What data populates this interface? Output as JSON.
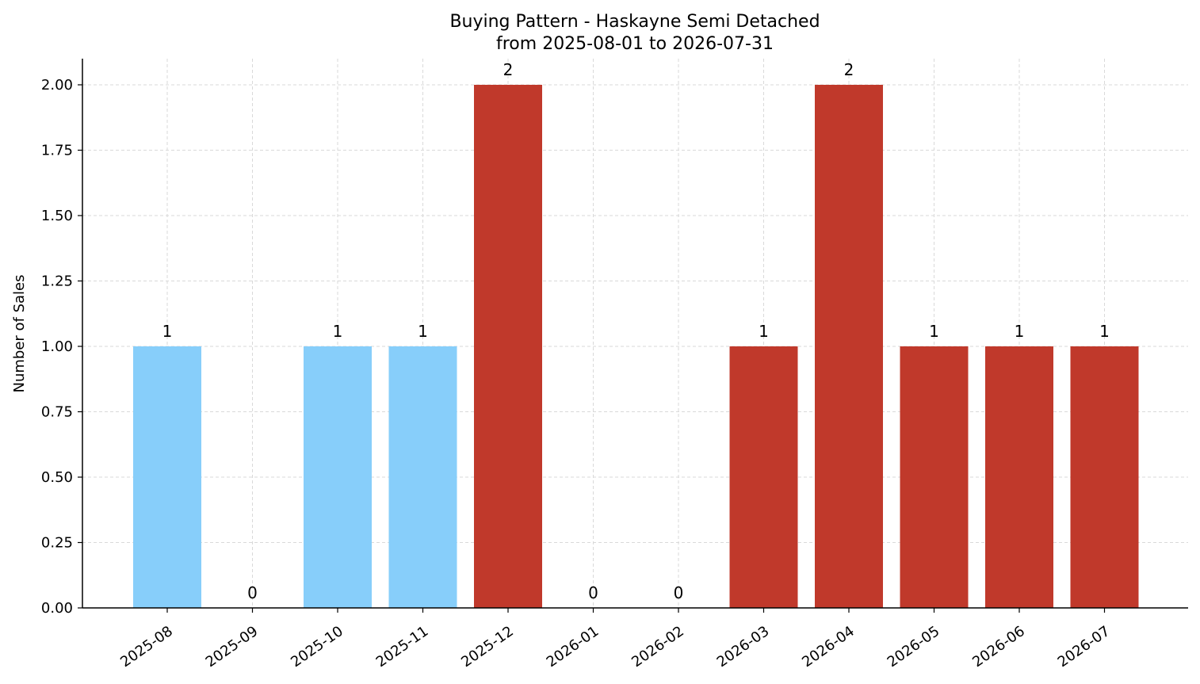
{
  "chart_data": {
    "type": "bar",
    "title": "Buying Pattern - Haskayne Semi Detached",
    "subtitle": "from 2025-08-01 to 2026-07-31",
    "xlabel": "",
    "ylabel": "Number of Sales",
    "categories": [
      "2025-08",
      "2025-09",
      "2025-10",
      "2025-11",
      "2025-12",
      "2026-01",
      "2026-02",
      "2026-03",
      "2026-04",
      "2026-05",
      "2026-06",
      "2026-07"
    ],
    "values": [
      1,
      0,
      1,
      1,
      2,
      0,
      0,
      1,
      2,
      1,
      1,
      1
    ],
    "data_labels": [
      "1",
      "0",
      "1",
      "1",
      "2",
      "0",
      "0",
      "1",
      "2",
      "1",
      "1",
      "1"
    ],
    "bar_colors": [
      "#87cefa",
      "#87cefa",
      "#87cefa",
      "#87cefa",
      "#c0392b",
      "#c0392b",
      "#c0392b",
      "#c0392b",
      "#c0392b",
      "#c0392b",
      "#c0392b",
      "#c0392b"
    ],
    "ylim": [
      0,
      2.1
    ],
    "yticks": [
      "0.00",
      "0.25",
      "0.50",
      "0.75",
      "1.00",
      "1.25",
      "1.50",
      "1.75",
      "2.00"
    ],
    "grid": true,
    "legend": "none"
  }
}
